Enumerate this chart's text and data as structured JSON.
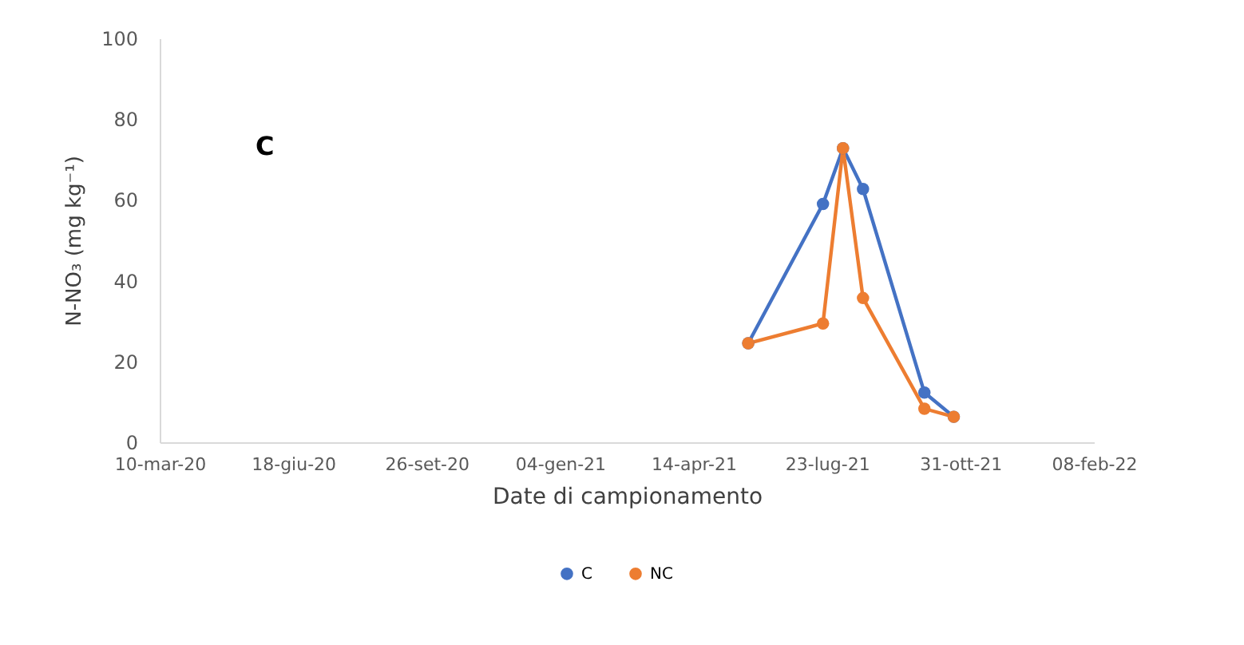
{
  "chart_data": {
    "type": "line",
    "xlabel": "Date di campionamento",
    "ylabel": "N-NO₃ (mg kg⁻¹)",
    "annotations": [
      "C"
    ],
    "x": [
      "2021-05-25",
      "2021-07-20",
      "2021-08-04",
      "2021-08-19",
      "2021-10-04",
      "2021-10-26"
    ],
    "series": [
      {
        "name": "C",
        "color": "#4472c4",
        "values": [
          24.5,
          59,
          72.8,
          62.7,
          12.3,
          6.3
        ]
      },
      {
        "name": "NC",
        "color": "#ed7d31",
        "values": [
          24.5,
          29.4,
          72.8,
          35.7,
          8.3,
          6.3
        ]
      }
    ],
    "xlim": [
      "2020-03-10",
      "2022-02-08"
    ],
    "xticks": [
      {
        "value": "2020-03-10",
        "label": "10-mar-20"
      },
      {
        "value": "2020-06-18",
        "label": "18-giu-20"
      },
      {
        "value": "2020-09-26",
        "label": "26-set-20"
      },
      {
        "value": "2021-01-04",
        "label": "04-gen-21"
      },
      {
        "value": "2021-04-14",
        "label": "14-apr-21"
      },
      {
        "value": "2021-07-23",
        "label": "23-lug-21"
      },
      {
        "value": "2021-10-31",
        "label": "31-ott-21"
      },
      {
        "value": "2022-02-08",
        "label": "08-feb-22"
      }
    ],
    "ylim": [
      0,
      100
    ],
    "yticks": [
      0,
      20,
      40,
      60,
      80,
      100
    ],
    "grid": false,
    "legend": "bottom",
    "marker": "circle",
    "line_style": "solid"
  }
}
